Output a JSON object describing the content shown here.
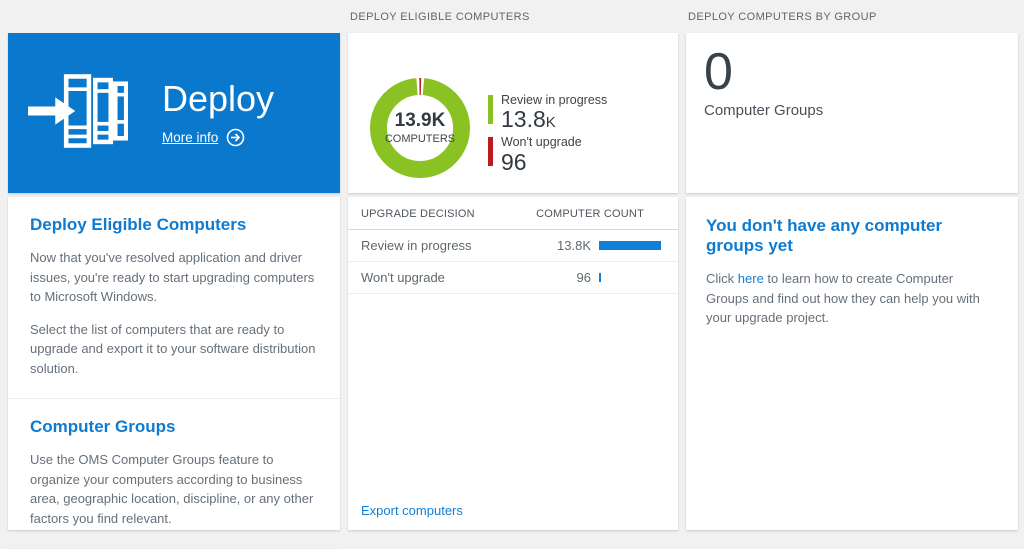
{
  "colors": {
    "tile_blue": "#0a78cd",
    "heading_blue": "#0f7bd0",
    "link_blue": "#1080d8",
    "donut_green": "#8ac224",
    "donut_red": "#ba1c21",
    "bar_blue": "#0f80d9"
  },
  "headers": {
    "middle": "DEPLOY ELIGIBLE COMPUTERS",
    "right": "DEPLOY COMPUTERS BY GROUP"
  },
  "tile": {
    "title": "Deploy",
    "more_info_label": "More info"
  },
  "left_panel": {
    "sections": [
      {
        "heading": "Deploy Eligible Computers",
        "paragraphs": [
          "Now that you've resolved application and driver issues, you're ready to start upgrading computers to Microsoft Windows.",
          "Select the list of computers that are ready to upgrade and export it to your software distribution solution."
        ]
      },
      {
        "heading": "Computer Groups",
        "paragraphs": [
          "Use the OMS Computer Groups feature to organize your computers according to business area, geographic location, discipline, or any other factors you find relevant."
        ]
      }
    ]
  },
  "chart_data": {
    "type": "pie",
    "title": "Deploy Eligible Computers",
    "center_value": "13.9K",
    "center_label": "COMPUTERS",
    "legend_position": "right",
    "series": [
      {
        "name": "Review in progress",
        "value": 13800,
        "display": "13.8K",
        "color": "#8ac224"
      },
      {
        "name": "Won't upgrade",
        "value": 96,
        "display": "96",
        "color": "#ba1c21"
      }
    ]
  },
  "table": {
    "columns": [
      "UPGRADE DECISION",
      "COMPUTER COUNT"
    ],
    "rows": [
      {
        "decision": "Review in progress",
        "count_display": "13.8K",
        "value": 13800
      },
      {
        "decision": "Won't upgrade",
        "count_display": "96",
        "value": 96
      }
    ],
    "export_label": "Export computers"
  },
  "group_panel": {
    "count": "0",
    "count_label": "Computer Groups",
    "empty_heading": "You don't have any computer groups yet",
    "empty_text_prefix": "Click ",
    "empty_link_text": "here",
    "empty_text_suffix": " to learn how to create Computer Groups and find out how they can help you with your upgrade project."
  }
}
